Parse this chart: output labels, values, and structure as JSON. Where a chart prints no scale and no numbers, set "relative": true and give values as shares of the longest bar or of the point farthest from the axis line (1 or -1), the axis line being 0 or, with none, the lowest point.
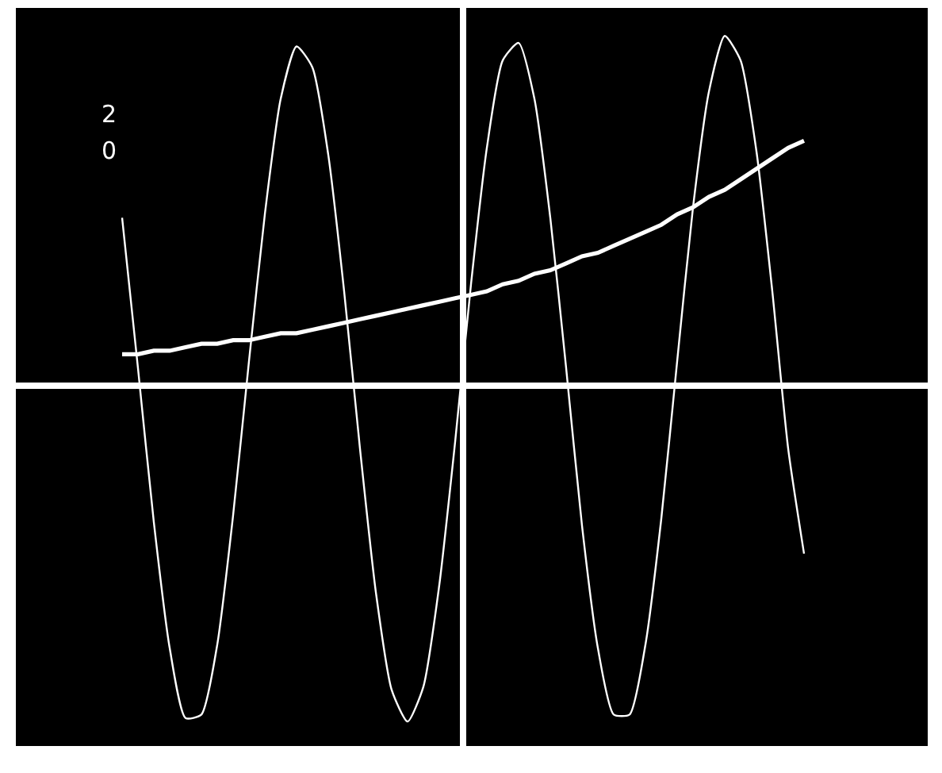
{
  "chart_data": {
    "type": "line",
    "relative": true,
    "categories": [
      null,
      null,
      null,
      null,
      null,
      null,
      null,
      null,
      null,
      null,
      null,
      null,
      null,
      null,
      null,
      null,
      null,
      null,
      null,
      null,
      null,
      null,
      null,
      null,
      null,
      null,
      null,
      null,
      null,
      null,
      null,
      null,
      null,
      null,
      null,
      null,
      null,
      null,
      null,
      null,
      null,
      null,
      null,
      null
    ],
    "series": [
      {
        "color": "#ffffff",
        "values": [
          0.48,
          0.05,
          -0.39,
          -0.75,
          -0.95,
          -0.94,
          -0.74,
          -0.37,
          0.07,
          0.49,
          0.82,
          0.97,
          0.91,
          0.66,
          0.27,
          -0.18,
          -0.59,
          -0.87,
          -0.96,
          -0.86,
          -0.57,
          -0.16,
          0.29,
          0.68,
          0.93,
          0.98,
          0.82,
          0.48,
          0.05,
          -0.4,
          -0.75,
          -0.94,
          -0.94,
          -0.74,
          -0.38,
          0.07,
          0.51,
          0.84,
          1,
          0.93,
          0.67,
          0.27,
          -0.18,
          -0.48
        ]
      },
      {
        "color": "#ffffff",
        "values": [
          0.09,
          0.09,
          0.1,
          0.1,
          0.11,
          0.12,
          0.12,
          0.13,
          0.13,
          0.14,
          0.15,
          0.15,
          0.16,
          0.17,
          0.18,
          0.19,
          0.2,
          0.21,
          0.22,
          0.23,
          0.24,
          0.25,
          0.26,
          0.27,
          0.29,
          0.3,
          0.32,
          0.33,
          0.35,
          0.37,
          0.38,
          0.4,
          0.42,
          0.44,
          0.46,
          0.49,
          0.51,
          0.54,
          0.56,
          0.59,
          0.62,
          0.65,
          0.68,
          0.7
        ]
      }
    ],
    "annotations": [
      "2",
      "0"
    ],
    "grid": false
  }
}
